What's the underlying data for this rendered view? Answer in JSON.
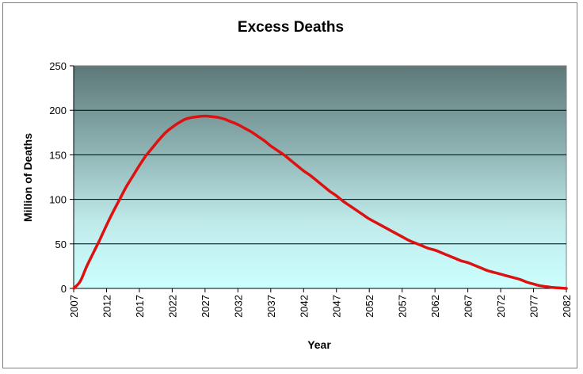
{
  "chart_data": {
    "type": "line",
    "title": "Excess Deaths",
    "xlabel": "Year",
    "ylabel": "Million of Deaths",
    "ylim": [
      0,
      250
    ],
    "y_ticks": [
      0,
      50,
      100,
      150,
      200,
      250
    ],
    "xlim": [
      2007,
      2082
    ],
    "x_ticks": [
      2007,
      2012,
      2017,
      2022,
      2027,
      2032,
      2037,
      2042,
      2047,
      2052,
      2057,
      2062,
      2067,
      2072,
      2077,
      2082
    ],
    "grid": true,
    "series": [
      {
        "name": "Excess Deaths",
        "color": "#dd1111",
        "x": [
          2007,
          2008,
          2009,
          2010,
          2011,
          2012,
          2013,
          2014,
          2015,
          2016,
          2017,
          2018,
          2019,
          2020,
          2021,
          2022,
          2023,
          2024,
          2025,
          2026,
          2027,
          2028,
          2029,
          2030,
          2031,
          2032,
          2033,
          2034,
          2035,
          2036,
          2037,
          2038,
          2039,
          2040,
          2041,
          2042,
          2043,
          2044,
          2045,
          2046,
          2047,
          2048,
          2049,
          2050,
          2051,
          2052,
          2053,
          2054,
          2055,
          2056,
          2057,
          2058,
          2059,
          2060,
          2061,
          2062,
          2063,
          2064,
          2065,
          2066,
          2067,
          2068,
          2069,
          2070,
          2071,
          2072,
          2073,
          2074,
          2075,
          2076,
          2077,
          2078,
          2079,
          2080,
          2081,
          2082
        ],
        "values": [
          0,
          8,
          25,
          40,
          55,
          71,
          86,
          100,
          114,
          126,
          138,
          149,
          158,
          167,
          175,
          181,
          186,
          190,
          192,
          193,
          193.5,
          193,
          192,
          190,
          187,
          184,
          180,
          176,
          171,
          166,
          160,
          155,
          150,
          144,
          138,
          132,
          127,
          121,
          115,
          109,
          104,
          98,
          93,
          88,
          83,
          78,
          74,
          70,
          66,
          62,
          58,
          54,
          51,
          48,
          45,
          43,
          40,
          37,
          34,
          31,
          29,
          26,
          23,
          20,
          18,
          16,
          14,
          12,
          10,
          7,
          5,
          3,
          2,
          1,
          0.5,
          0
        ]
      }
    ]
  }
}
